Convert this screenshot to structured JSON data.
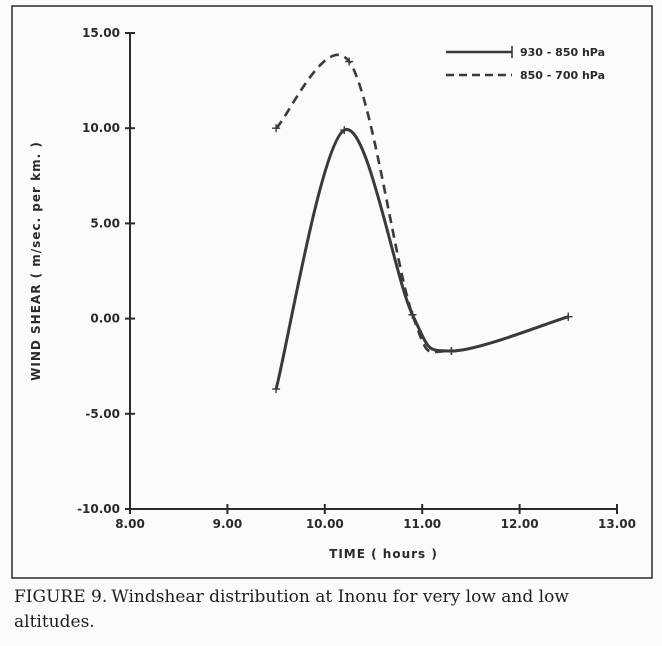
{
  "chart_data": {
    "type": "line",
    "title": "",
    "xlabel": "TIME ( hours )",
    "ylabel": "WIND SHEAR ( m/sec. per km. )",
    "xlim": [
      8.0,
      13.0
    ],
    "ylim": [
      -10.0,
      15.0
    ],
    "x_ticks": [
      8.0,
      9.0,
      10.0,
      11.0,
      12.0,
      13.0
    ],
    "x_tick_labels": [
      "8.00",
      "9.00",
      "10.00",
      "11.00",
      "12.00",
      "13.00"
    ],
    "y_ticks": [
      -10.0,
      -5.0,
      0.0,
      5.0,
      10.0,
      15.0
    ],
    "y_tick_labels": [
      "-10.00",
      "-5.00",
      "0.00",
      "5.00",
      "10.00",
      "15.00"
    ],
    "grid": false,
    "legend_position": "top-right",
    "series": [
      {
        "name": "930 - 850 hPa",
        "style": "solid",
        "x": [
          9.5,
          10.2,
          10.9,
          11.3,
          12.5
        ],
        "y": [
          -3.7,
          9.9,
          0.2,
          -1.7,
          0.1
        ]
      },
      {
        "name": "850 - 700 hPa",
        "style": "dashed",
        "x": [
          9.5,
          10.25,
          10.9,
          11.3,
          12.5
        ],
        "y": [
          10.0,
          13.5,
          0.2,
          -1.7,
          0.1
        ]
      }
    ]
  },
  "caption": {
    "label": "FIGURE 9.",
    "text": "Windshear distribution at Inonu for very low and low altitudes."
  },
  "colors": {
    "line": "#3a3a3a",
    "frame": "#2b2b2b"
  }
}
